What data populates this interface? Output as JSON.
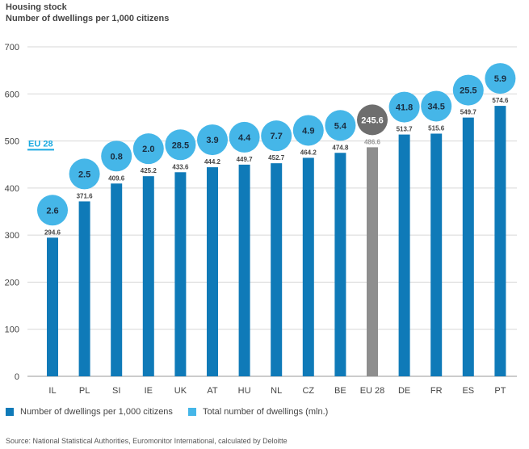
{
  "title": "Housing stock",
  "subtitle": "Number of dwellings per 1,000 citizens",
  "source": "Source: National Statistical Authorities, Euromonitor International, calculated by Deloitte",
  "colors": {
    "bar": "#0f7ab8",
    "bar_eu": "#8e8e8e",
    "bubble": "#45b6e8",
    "bubble_eu": "#6e6e6e",
    "eu_line": "#19a9e0",
    "grid": "#d7d7d7"
  },
  "legend": [
    {
      "label": "Number of dwellings per 1,000 citizens",
      "color": "#0f7ab8"
    },
    {
      "label": "Total number of dwellings (mln.)",
      "color": "#45b6e8"
    }
  ],
  "eu_marker_label": "EU 28",
  "chart_data": {
    "type": "bar",
    "title": "Housing stock",
    "subtitle": "Number of dwellings per 1,000 citizens",
    "categories": [
      "IL",
      "PL",
      "SI",
      "IE",
      "UK",
      "AT",
      "HU",
      "NL",
      "CZ",
      "BE",
      "EU 28",
      "DE",
      "FR",
      "ES",
      "PT"
    ],
    "series": [
      {
        "name": "Number of dwellings per 1,000 citizens",
        "values": [
          294.6,
          371.6,
          409.6,
          425.2,
          433.6,
          444.2,
          449.7,
          452.7,
          464.2,
          474.8,
          486.6,
          513.7,
          515.6,
          549.7,
          574.6
        ]
      },
      {
        "name": "Total number of dwellings (mln.)",
        "values": [
          2.6,
          2.5,
          0.8,
          2.0,
          28.5,
          3.9,
          4.4,
          7.7,
          4.9,
          5.4,
          245.6,
          41.8,
          34.5,
          25.5,
          5.9
        ]
      }
    ],
    "highlight_category": "EU 28",
    "ylim": [
      0,
      700
    ],
    "yticks": [
      0,
      100,
      200,
      300,
      400,
      500,
      600,
      700
    ],
    "reference_line": {
      "label": "EU 28",
      "value": 486.6
    },
    "grid": true,
    "legend_position": "bottom-left"
  }
}
